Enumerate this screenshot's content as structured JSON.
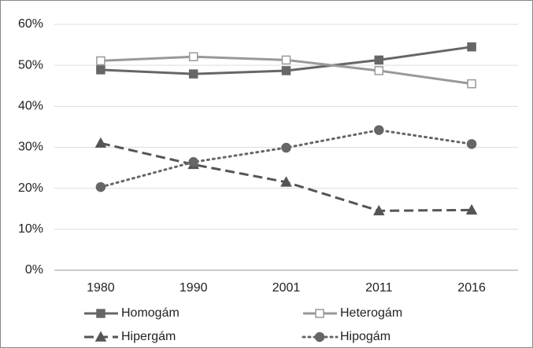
{
  "chart_data": {
    "type": "line",
    "categories": [
      "1980",
      "1990",
      "2001",
      "2011",
      "2016"
    ],
    "ylim": [
      0,
      60
    ],
    "yticks": [
      {
        "value": 0,
        "label": "0%"
      },
      {
        "value": 10,
        "label": "10%"
      },
      {
        "value": 20,
        "label": "20%"
      },
      {
        "value": 30,
        "label": "30%"
      },
      {
        "value": 40,
        "label": "40%"
      },
      {
        "value": 50,
        "label": "50%"
      },
      {
        "value": 60,
        "label": "60%"
      }
    ],
    "grid": true,
    "series": [
      {
        "name": "Homogám",
        "color": "#666666",
        "marker": "square",
        "hollow": false,
        "dash": "solid",
        "values": [
          48.9,
          47.9,
          48.7,
          51.3,
          54.5
        ]
      },
      {
        "name": "Heterogám",
        "color": "#999999",
        "marker": "square",
        "hollow": true,
        "dash": "solid",
        "values": [
          51.1,
          52.1,
          51.3,
          48.7,
          45.5
        ]
      },
      {
        "name": "Hipergám",
        "color": "#555555",
        "marker": "triangle",
        "hollow": false,
        "dash": "dash",
        "values": [
          31.0,
          25.8,
          21.5,
          14.5,
          14.7
        ]
      },
      {
        "name": "Hipogám",
        "color": "#666666",
        "marker": "circle",
        "hollow": false,
        "dash": "dot",
        "values": [
          20.3,
          26.4,
          29.9,
          34.2,
          30.8
        ]
      }
    ]
  }
}
